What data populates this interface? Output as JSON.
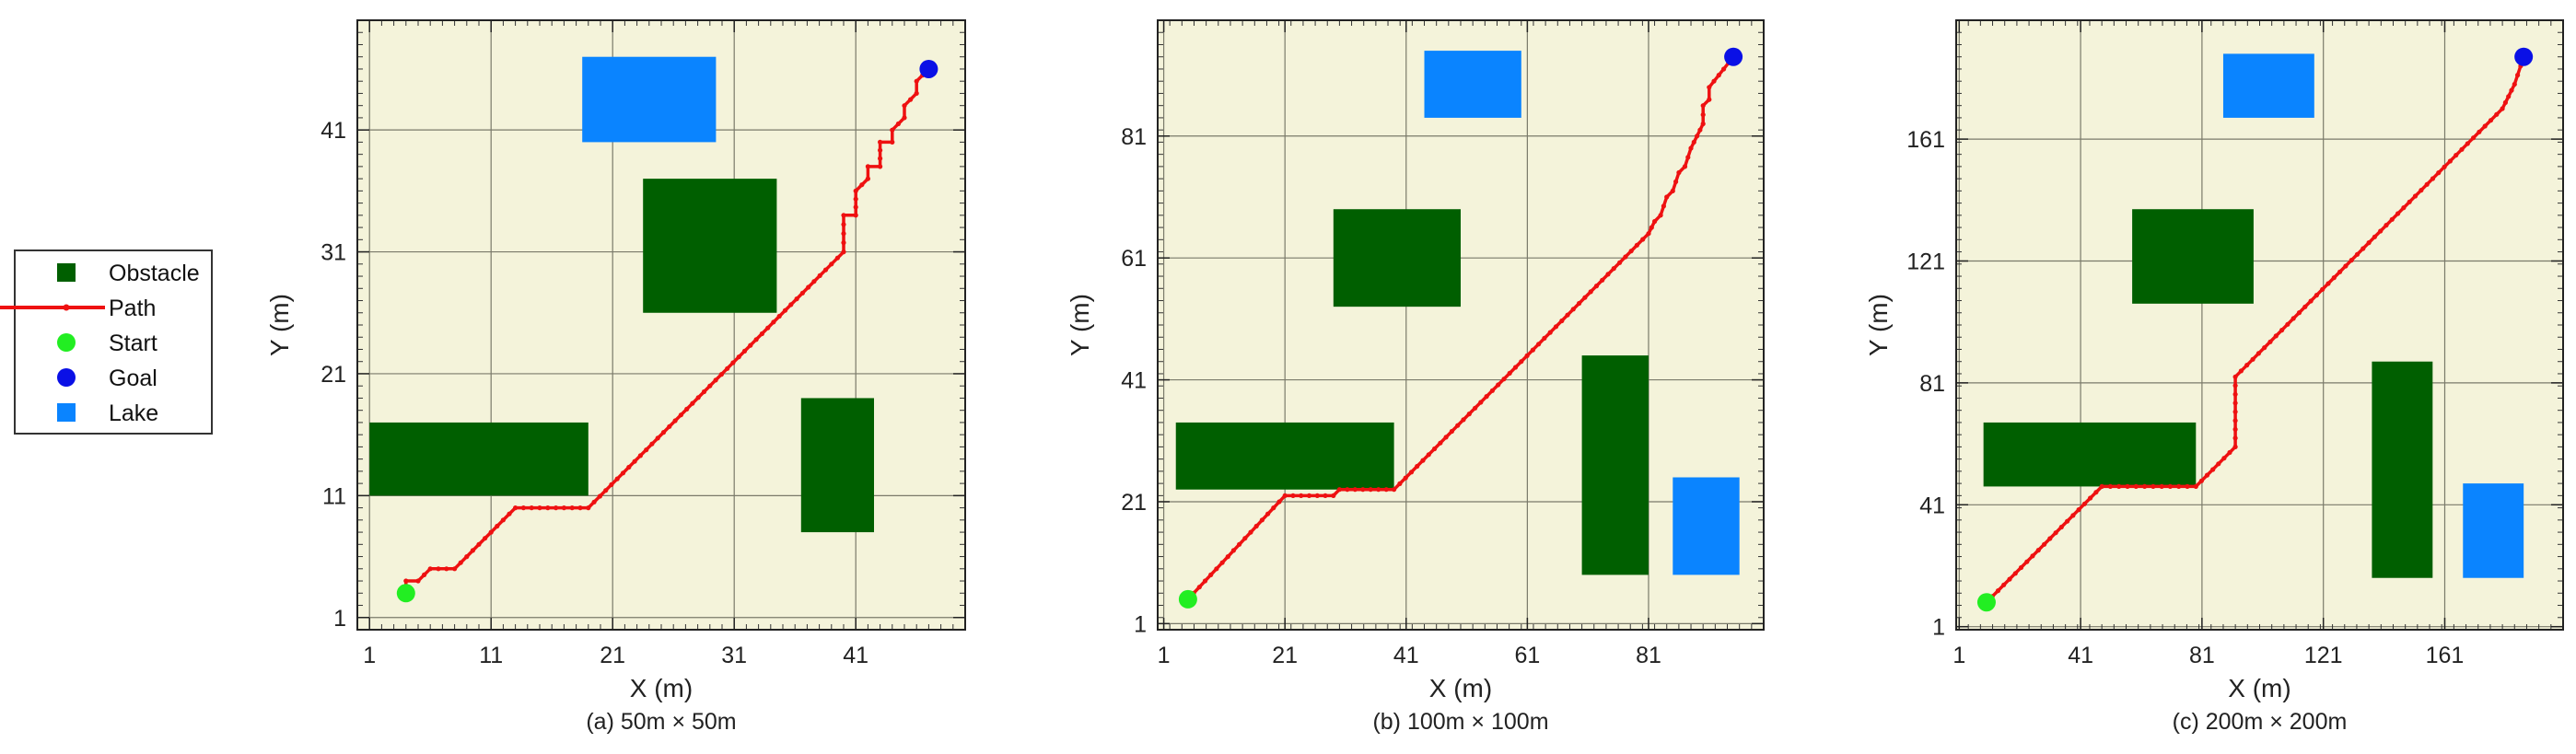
{
  "colors": {
    "background": "#f4f3da",
    "obstacle": "#005f00",
    "lake": "#0a84ff",
    "path": "#ee1111",
    "start": "#22ee22",
    "goal": "#0a10e6",
    "grid": "#7a7a6a"
  },
  "legend": {
    "items": [
      {
        "label": "Obstacle",
        "marker": "square",
        "color": "#005f00"
      },
      {
        "label": "Path",
        "marker": "line-dot",
        "color": "#ee1111"
      },
      {
        "label": "Start",
        "marker": "circle",
        "color": "#22ee22"
      },
      {
        "label": "Goal",
        "marker": "circle",
        "color": "#0a10e6"
      },
      {
        "label": "Lake",
        "marker": "square",
        "color": "#0a84ff"
      }
    ]
  },
  "chart_data": [
    {
      "type": "scatter",
      "caption": "(a) 50m × 50m",
      "xlabel": "X (m)",
      "ylabel": "Y (m)",
      "xlim": [
        0,
        50
      ],
      "ylim": [
        0,
        50
      ],
      "xticks": [
        1,
        11,
        21,
        31,
        41
      ],
      "yticks": [
        1,
        11,
        21,
        31,
        41
      ],
      "grid": true,
      "obstacles": [
        {
          "x1": 23.5,
          "x2": 34.5,
          "y1": 26,
          "y2": 37
        },
        {
          "x1": 1,
          "x2": 19,
          "y1": 11,
          "y2": 17
        },
        {
          "x1": 36.5,
          "x2": 42.5,
          "y1": 8,
          "y2": 19
        }
      ],
      "lakes": [
        {
          "x1": 18.5,
          "x2": 29.5,
          "y1": 40,
          "y2": 47
        }
      ],
      "start": [
        4,
        3
      ],
      "goal": [
        47,
        46
      ],
      "path": [
        [
          4,
          3
        ],
        [
          4,
          4
        ],
        [
          5,
          4
        ],
        [
          6,
          5
        ],
        [
          8,
          5
        ],
        [
          9,
          6
        ],
        [
          13,
          10
        ],
        [
          19,
          10
        ],
        [
          39,
          30
        ],
        [
          40,
          31
        ],
        [
          40,
          34
        ],
        [
          41,
          34
        ],
        [
          41,
          36
        ],
        [
          42,
          37
        ],
        [
          42,
          38
        ],
        [
          43,
          38
        ],
        [
          43,
          40
        ],
        [
          44,
          40
        ],
        [
          44,
          41
        ],
        [
          45,
          42
        ],
        [
          45,
          43
        ],
        [
          46,
          44
        ],
        [
          46,
          45
        ],
        [
          47,
          46
        ]
      ]
    },
    {
      "type": "scatter",
      "caption": "(b) 100m × 100m",
      "xlabel": "X (m)",
      "ylabel": "Y (m)",
      "xlim": [
        0,
        100
      ],
      "ylim": [
        0,
        100
      ],
      "xticks": [
        1,
        21,
        41,
        61,
        81
      ],
      "yticks": [
        1,
        21,
        41,
        61,
        81
      ],
      "grid": true,
      "obstacles": [
        {
          "x1": 29,
          "x2": 50,
          "y1": 53,
          "y2": 69
        },
        {
          "x1": 3,
          "x2": 39,
          "y1": 23,
          "y2": 34
        },
        {
          "x1": 70,
          "x2": 81,
          "y1": 9,
          "y2": 45
        }
      ],
      "lakes": [
        {
          "x1": 44,
          "x2": 60,
          "y1": 84,
          "y2": 95
        },
        {
          "x1": 85,
          "x2": 96,
          "y1": 9,
          "y2": 25
        }
      ],
      "start": [
        5,
        5
      ],
      "goal": [
        95,
        94
      ],
      "path": [
        [
          5,
          5
        ],
        [
          21,
          22
        ],
        [
          29,
          22
        ],
        [
          30,
          23
        ],
        [
          39,
          23
        ],
        [
          81,
          65
        ],
        [
          82,
          67
        ],
        [
          83,
          68
        ],
        [
          84,
          71
        ],
        [
          85,
          72
        ],
        [
          86,
          75
        ],
        [
          87,
          76
        ],
        [
          88,
          79
        ],
        [
          89,
          81
        ],
        [
          90,
          83
        ],
        [
          90,
          86
        ],
        [
          91,
          87
        ],
        [
          91,
          89
        ],
        [
          95,
          94
        ]
      ]
    },
    {
      "type": "scatter",
      "caption": "(c) 200m × 200m",
      "xlabel": "X (m)",
      "ylabel": "Y (m)",
      "xlim": [
        0,
        200
      ],
      "ylim": [
        0,
        200
      ],
      "xticks": [
        1,
        41,
        81,
        121,
        161
      ],
      "yticks": [
        1,
        41,
        81,
        121,
        161
      ],
      "grid": true,
      "obstacles": [
        {
          "x1": 58,
          "x2": 98,
          "y1": 107,
          "y2": 138
        },
        {
          "x1": 9,
          "x2": 79,
          "y1": 47,
          "y2": 68
        },
        {
          "x1": 137,
          "x2": 157,
          "y1": 17,
          "y2": 88
        }
      ],
      "lakes": [
        {
          "x1": 88,
          "x2": 118,
          "y1": 168,
          "y2": 189
        },
        {
          "x1": 167,
          "x2": 187,
          "y1": 17,
          "y2": 48
        }
      ],
      "start": [
        10,
        9
      ],
      "goal": [
        187,
        188
      ],
      "path": [
        [
          10,
          9
        ],
        [
          48,
          47
        ],
        [
          79,
          47
        ],
        [
          92,
          60
        ],
        [
          92,
          83
        ],
        [
          180,
          171
        ],
        [
          182,
          175
        ],
        [
          184,
          179
        ],
        [
          187,
          188
        ]
      ]
    }
  ]
}
